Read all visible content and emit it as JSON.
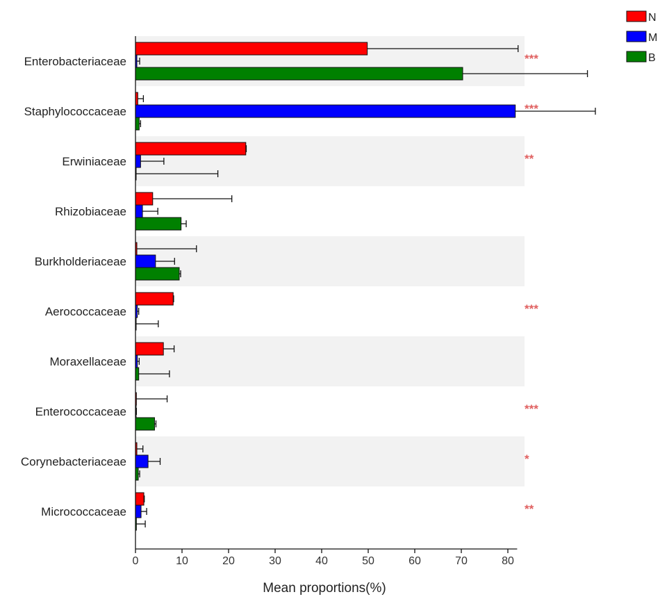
{
  "chart_data": {
    "type": "bar",
    "orientation": "horizontal",
    "categories": [
      "Enterobacteriaceae",
      "Staphylococcaceae",
      "Erwiniaceae",
      "Rhizobiaceae",
      "Burkholderiaceae",
      "Aerococcaceae",
      "Moraxellaceae",
      "Enterococcaceae",
      "Corynebacteriaceae",
      "Micrococcaceae"
    ],
    "series": [
      {
        "name": "N",
        "color": "#ff0000",
        "values": [
          49.8,
          0.5,
          23.7,
          3.7,
          0.3,
          8.1,
          6.0,
          0.2,
          0.3,
          1.8
        ],
        "error": [
          32.4,
          1.2,
          0.1,
          17.0,
          12.8,
          0.1,
          2.3,
          6.6,
          1.3,
          0.1
        ]
      },
      {
        "name": "M",
        "color": "#0000ff",
        "values": [
          0.3,
          81.6,
          1.1,
          1.5,
          4.3,
          0.4,
          0.4,
          0.1,
          2.7,
          1.2
        ],
        "error": [
          0.6,
          17.2,
          5.0,
          3.3,
          4.1,
          0.3,
          0.4,
          0.1,
          2.6,
          1.2
        ]
      },
      {
        "name": "B",
        "color": "#008000",
        "values": [
          70.3,
          0.8,
          0.1,
          9.8,
          9.4,
          0.1,
          0.7,
          4.1,
          0.6,
          0.2
        ],
        "error": [
          26.8,
          0.3,
          17.6,
          1.1,
          0.3,
          4.8,
          6.6,
          0.3,
          0.3,
          1.9
        ]
      }
    ],
    "significance": [
      "***",
      "***",
      "**",
      "",
      "",
      "***",
      "",
      "***",
      "*",
      "**"
    ],
    "significance_color": "#e06060",
    "xlabel": "Mean proportions(%)",
    "xlim": [
      0,
      82
    ],
    "xticks": [
      "0",
      "10",
      "20",
      "30",
      "40",
      "50",
      "60",
      "70",
      "80"
    ],
    "alternating_background": true,
    "band_color": "#f2f2f2",
    "legend_position": "top-right"
  }
}
